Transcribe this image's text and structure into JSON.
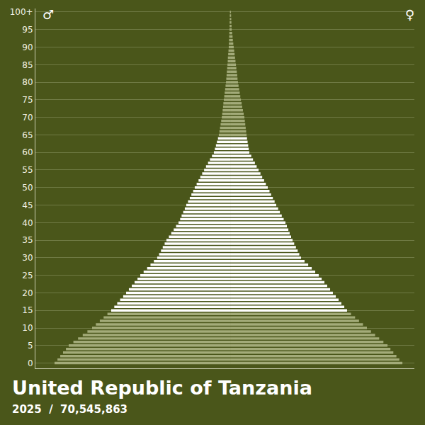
{
  "chart_data": {
    "type": "bar",
    "orientation": "horizontal",
    "title": "United Republic of Tanzania",
    "subtitle": "2025  /  70,545,863",
    "categories": [
      0,
      1,
      2,
      3,
      4,
      5,
      6,
      7,
      8,
      9,
      10,
      11,
      12,
      13,
      14,
      15,
      16,
      17,
      18,
      19,
      20,
      21,
      22,
      23,
      24,
      25,
      26,
      27,
      28,
      29,
      30,
      31,
      32,
      33,
      34,
      35,
      36,
      37,
      38,
      39,
      40,
      41,
      42,
      43,
      44,
      45,
      46,
      47,
      48,
      49,
      50,
      51,
      52,
      53,
      54,
      55,
      56,
      57,
      58,
      59,
      60,
      61,
      62,
      63,
      64,
      65,
      66,
      67,
      68,
      69,
      70,
      71,
      72,
      73,
      74,
      75,
      76,
      77,
      78,
      79,
      80,
      81,
      82,
      83,
      84,
      85,
      86,
      87,
      88,
      89,
      90,
      91,
      92,
      93,
      94,
      95,
      96,
      97,
      98,
      99,
      100
    ],
    "series": [
      {
        "name": "♂",
        "values": [
          -1203000,
          -1183000,
          -1164000,
          -1145000,
          -1125000,
          -1106000,
          -1074000,
          -1042000,
          -1010000,
          -978000,
          -946000,
          -920000,
          -893000,
          -867000,
          -841000,
          -815000,
          -794000,
          -774000,
          -754000,
          -733000,
          -713000,
          -694000,
          -674000,
          -655000,
          -635000,
          -616000,
          -593000,
          -569000,
          -546000,
          -523000,
          -500000,
          -487000,
          -474000,
          -462000,
          -449000,
          -437000,
          -420000,
          -404000,
          -387000,
          -371000,
          -354000,
          -343000,
          -333000,
          -322000,
          -311000,
          -301000,
          -289000,
          -277000,
          -266000,
          -254000,
          -243000,
          -230000,
          -217000,
          -205000,
          -192000,
          -179000,
          -166000,
          -152000,
          -139000,
          -125000,
          -112000,
          -105000,
          -98000,
          -91000,
          -84000,
          -78000,
          -74000,
          -70000,
          -66000,
          -62000,
          -58000,
          -55000,
          -52000,
          -49000,
          -47000,
          -44000,
          -41000,
          -38000,
          -35000,
          -32000,
          -29000,
          -27000,
          -25000,
          -23000,
          -21000,
          -19000,
          -17000,
          -16000,
          -14000,
          -12000,
          -10000,
          -9000,
          -8000,
          -7000,
          -6000,
          -5000,
          -4000,
          -4000,
          -3000,
          -3000,
          -2000
        ],
        "colors": [
          "#a3ab79",
          "#a3ab79",
          "#a3ab79",
          "#a3ab79",
          "#a3ab79",
          "#a3ab79",
          "#a3ab79",
          "#a3ab79",
          "#a3ab79",
          "#a3ab79",
          "#a3ab79",
          "#a3ab79",
          "#a3ab79",
          "#a3ab79",
          "#a3ab79",
          "#ffffff",
          "#ffffff",
          "#ffffff",
          "#ffffff",
          "#ffffff",
          "#ffffff",
          "#ffffff",
          "#ffffff",
          "#ffffff",
          "#ffffff",
          "#ffffff",
          "#ffffff",
          "#ffffff",
          "#ffffff",
          "#ffffff",
          "#ffffff",
          "#ffffff",
          "#ffffff",
          "#ffffff",
          "#ffffff",
          "#ffffff",
          "#ffffff",
          "#ffffff",
          "#ffffff",
          "#ffffff",
          "#ffffff",
          "#ffffff",
          "#ffffff",
          "#ffffff",
          "#ffffff",
          "#ffffff",
          "#ffffff",
          "#ffffff",
          "#ffffff",
          "#ffffff",
          "#ffffff",
          "#ffffff",
          "#ffffff",
          "#ffffff",
          "#ffffff",
          "#ffffff",
          "#ffffff",
          "#ffffff",
          "#ffffff",
          "#ffffff",
          "#ffffff",
          "#ffffff",
          "#ffffff",
          "#ffffff",
          "#ffffff",
          "#a3ab79",
          "#a3ab79",
          "#a3ab79",
          "#a3ab79",
          "#a3ab79",
          "#a3ab79",
          "#a3ab79",
          "#a3ab79",
          "#a3ab79",
          "#a3ab79",
          "#a3ab79",
          "#a3ab79",
          "#a3ab79",
          "#a3ab79",
          "#a3ab79",
          "#a3ab79",
          "#a3ab79",
          "#a3ab79",
          "#a3ab79",
          "#a3ab79",
          "#a3ab79",
          "#a3ab79",
          "#a3ab79",
          "#a3ab79",
          "#a3ab79",
          "#a3ab79",
          "#a3ab79",
          "#a3ab79",
          "#a3ab79",
          "#a3ab79",
          "#a3ab79",
          "#a3ab79",
          "#a3ab79",
          "#a3ab79",
          "#a3ab79",
          "#a3ab79"
        ]
      },
      {
        "name": "♀",
        "values": [
          1179000,
          1158000,
          1138000,
          1117000,
          1097000,
          1077000,
          1049000,
          1020000,
          992000,
          964000,
          936000,
          909000,
          882000,
          855000,
          827000,
          800000,
          781000,
          761000,
          742000,
          723000,
          703000,
          684000,
          664000,
          645000,
          626000,
          606000,
          582000,
          558000,
          534000,
          509000,
          485000,
          473000,
          462000,
          450000,
          438000,
          427000,
          417000,
          407000,
          398000,
          388000,
          378000,
          366000,
          353000,
          340000,
          328000,
          315000,
          304000,
          292000,
          280000,
          269000,
          257000,
          244000,
          232000,
          219000,
          207000,
          194000,
          181000,
          169000,
          156000,
          144000,
          131000,
          127000,
          123000,
          119000,
          115000,
          112000,
          109000,
          106000,
          103000,
          100000,
          97000,
          92000,
          87000,
          82000,
          78000,
          73000,
          69000,
          65000,
          61000,
          57000,
          53000,
          50000,
          48000,
          45000,
          42000,
          39000,
          36000,
          33000,
          30000,
          27000,
          24000,
          21000,
          18000,
          16000,
          13000,
          10000,
          9000,
          8000,
          7000,
          6000,
          5000
        ],
        "colors": [
          "#a3ab79",
          "#a3ab79",
          "#a3ab79",
          "#a3ab79",
          "#a3ab79",
          "#a3ab79",
          "#a3ab79",
          "#a3ab79",
          "#a3ab79",
          "#a3ab79",
          "#a3ab79",
          "#a3ab79",
          "#a3ab79",
          "#a3ab79",
          "#a3ab79",
          "#ffffff",
          "#ffffff",
          "#ffffff",
          "#ffffff",
          "#ffffff",
          "#ffffff",
          "#ffffff",
          "#ffffff",
          "#ffffff",
          "#ffffff",
          "#ffffff",
          "#ffffff",
          "#ffffff",
          "#ffffff",
          "#ffffff",
          "#ffffff",
          "#ffffff",
          "#ffffff",
          "#ffffff",
          "#ffffff",
          "#ffffff",
          "#ffffff",
          "#ffffff",
          "#ffffff",
          "#ffffff",
          "#ffffff",
          "#ffffff",
          "#ffffff",
          "#ffffff",
          "#ffffff",
          "#ffffff",
          "#ffffff",
          "#ffffff",
          "#ffffff",
          "#ffffff",
          "#ffffff",
          "#ffffff",
          "#ffffff",
          "#ffffff",
          "#ffffff",
          "#ffffff",
          "#ffffff",
          "#ffffff",
          "#ffffff",
          "#ffffff",
          "#ffffff",
          "#ffffff",
          "#ffffff",
          "#ffffff",
          "#ffffff",
          "#a3ab79",
          "#a3ab79",
          "#a3ab79",
          "#a3ab79",
          "#a3ab79",
          "#a3ab79",
          "#a3ab79",
          "#a3ab79",
          "#a3ab79",
          "#a3ab79",
          "#a3ab79",
          "#a3ab79",
          "#a3ab79",
          "#a3ab79",
          "#a3ab79",
          "#a3ab79",
          "#a3ab79",
          "#a3ab79",
          "#a3ab79",
          "#a3ab79",
          "#a3ab79",
          "#a3ab79",
          "#a3ab79",
          "#a3ab79",
          "#a3ab79",
          "#a3ab79",
          "#a3ab79",
          "#a3ab79",
          "#a3ab79",
          "#a3ab79",
          "#a3ab79",
          "#a3ab79",
          "#a3ab79",
          "#a3ab79",
          "#a3ab79",
          "#a3ab79"
        ]
      }
    ],
    "xlim": [
      -1334000,
      1261000
    ],
    "ylim": [
      -1.5,
      101
    ],
    "yticks": [
      0,
      5,
      10,
      15,
      20,
      25,
      30,
      35,
      40,
      45,
      50,
      55,
      60,
      65,
      70,
      75,
      80,
      85,
      90,
      95,
      {
        "value": 100,
        "label": "100+"
      }
    ],
    "grid": true,
    "tick_labels": "y"
  }
}
